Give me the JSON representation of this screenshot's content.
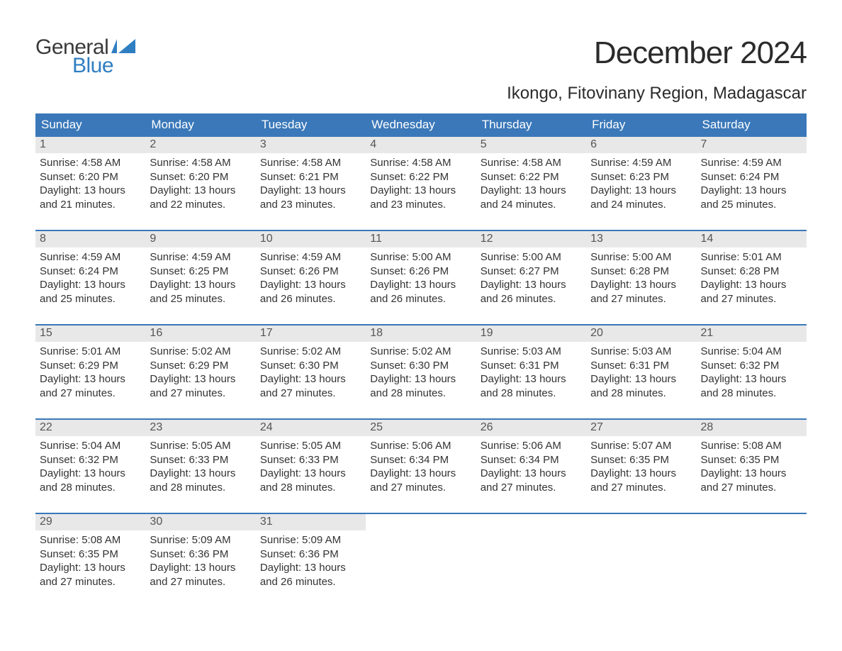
{
  "brand": {
    "general": "General",
    "blue": "Blue",
    "flag_color": "#2f7ec2"
  },
  "title": "December 2024",
  "location": "Ikongo, Fitovinany Region, Madagascar",
  "colors": {
    "header_bg": "#3a78b9",
    "header_text": "#ffffff",
    "daynum_bg": "#e8e8e8",
    "daynum_text": "#555555",
    "body_text": "#333333",
    "week_border": "#3a78b9",
    "page_bg": "#ffffff"
  },
  "typography": {
    "title_fontsize": 44,
    "location_fontsize": 24,
    "dow_fontsize": 17,
    "cell_fontsize": 15
  },
  "labels": {
    "sunrise": "Sunrise:",
    "sunset": "Sunset:",
    "daylight": "Daylight:"
  },
  "dow": [
    "Sunday",
    "Monday",
    "Tuesday",
    "Wednesday",
    "Thursday",
    "Friday",
    "Saturday"
  ],
  "weeks": [
    [
      {
        "n": "1",
        "sunrise": "4:58 AM",
        "sunset": "6:20 PM",
        "dl1": "13 hours",
        "dl2": "and 21 minutes."
      },
      {
        "n": "2",
        "sunrise": "4:58 AM",
        "sunset": "6:20 PM",
        "dl1": "13 hours",
        "dl2": "and 22 minutes."
      },
      {
        "n": "3",
        "sunrise": "4:58 AM",
        "sunset": "6:21 PM",
        "dl1": "13 hours",
        "dl2": "and 23 minutes."
      },
      {
        "n": "4",
        "sunrise": "4:58 AM",
        "sunset": "6:22 PM",
        "dl1": "13 hours",
        "dl2": "and 23 minutes."
      },
      {
        "n": "5",
        "sunrise": "4:58 AM",
        "sunset": "6:22 PM",
        "dl1": "13 hours",
        "dl2": "and 24 minutes."
      },
      {
        "n": "6",
        "sunrise": "4:59 AM",
        "sunset": "6:23 PM",
        "dl1": "13 hours",
        "dl2": "and 24 minutes."
      },
      {
        "n": "7",
        "sunrise": "4:59 AM",
        "sunset": "6:24 PM",
        "dl1": "13 hours",
        "dl2": "and 25 minutes."
      }
    ],
    [
      {
        "n": "8",
        "sunrise": "4:59 AM",
        "sunset": "6:24 PM",
        "dl1": "13 hours",
        "dl2": "and 25 minutes."
      },
      {
        "n": "9",
        "sunrise": "4:59 AM",
        "sunset": "6:25 PM",
        "dl1": "13 hours",
        "dl2": "and 25 minutes."
      },
      {
        "n": "10",
        "sunrise": "4:59 AM",
        "sunset": "6:26 PM",
        "dl1": "13 hours",
        "dl2": "and 26 minutes."
      },
      {
        "n": "11",
        "sunrise": "5:00 AM",
        "sunset": "6:26 PM",
        "dl1": "13 hours",
        "dl2": "and 26 minutes."
      },
      {
        "n": "12",
        "sunrise": "5:00 AM",
        "sunset": "6:27 PM",
        "dl1": "13 hours",
        "dl2": "and 26 minutes."
      },
      {
        "n": "13",
        "sunrise": "5:00 AM",
        "sunset": "6:28 PM",
        "dl1": "13 hours",
        "dl2": "and 27 minutes."
      },
      {
        "n": "14",
        "sunrise": "5:01 AM",
        "sunset": "6:28 PM",
        "dl1": "13 hours",
        "dl2": "and 27 minutes."
      }
    ],
    [
      {
        "n": "15",
        "sunrise": "5:01 AM",
        "sunset": "6:29 PM",
        "dl1": "13 hours",
        "dl2": "and 27 minutes."
      },
      {
        "n": "16",
        "sunrise": "5:02 AM",
        "sunset": "6:29 PM",
        "dl1": "13 hours",
        "dl2": "and 27 minutes."
      },
      {
        "n": "17",
        "sunrise": "5:02 AM",
        "sunset": "6:30 PM",
        "dl1": "13 hours",
        "dl2": "and 27 minutes."
      },
      {
        "n": "18",
        "sunrise": "5:02 AM",
        "sunset": "6:30 PM",
        "dl1": "13 hours",
        "dl2": "and 28 minutes."
      },
      {
        "n": "19",
        "sunrise": "5:03 AM",
        "sunset": "6:31 PM",
        "dl1": "13 hours",
        "dl2": "and 28 minutes."
      },
      {
        "n": "20",
        "sunrise": "5:03 AM",
        "sunset": "6:31 PM",
        "dl1": "13 hours",
        "dl2": "and 28 minutes."
      },
      {
        "n": "21",
        "sunrise": "5:04 AM",
        "sunset": "6:32 PM",
        "dl1": "13 hours",
        "dl2": "and 28 minutes."
      }
    ],
    [
      {
        "n": "22",
        "sunrise": "5:04 AM",
        "sunset": "6:32 PM",
        "dl1": "13 hours",
        "dl2": "and 28 minutes."
      },
      {
        "n": "23",
        "sunrise": "5:05 AM",
        "sunset": "6:33 PM",
        "dl1": "13 hours",
        "dl2": "and 28 minutes."
      },
      {
        "n": "24",
        "sunrise": "5:05 AM",
        "sunset": "6:33 PM",
        "dl1": "13 hours",
        "dl2": "and 28 minutes."
      },
      {
        "n": "25",
        "sunrise": "5:06 AM",
        "sunset": "6:34 PM",
        "dl1": "13 hours",
        "dl2": "and 27 minutes."
      },
      {
        "n": "26",
        "sunrise": "5:06 AM",
        "sunset": "6:34 PM",
        "dl1": "13 hours",
        "dl2": "and 27 minutes."
      },
      {
        "n": "27",
        "sunrise": "5:07 AM",
        "sunset": "6:35 PM",
        "dl1": "13 hours",
        "dl2": "and 27 minutes."
      },
      {
        "n": "28",
        "sunrise": "5:08 AM",
        "sunset": "6:35 PM",
        "dl1": "13 hours",
        "dl2": "and 27 minutes."
      }
    ],
    [
      {
        "n": "29",
        "sunrise": "5:08 AM",
        "sunset": "6:35 PM",
        "dl1": "13 hours",
        "dl2": "and 27 minutes."
      },
      {
        "n": "30",
        "sunrise": "5:09 AM",
        "sunset": "6:36 PM",
        "dl1": "13 hours",
        "dl2": "and 27 minutes."
      },
      {
        "n": "31",
        "sunrise": "5:09 AM",
        "sunset": "6:36 PM",
        "dl1": "13 hours",
        "dl2": "and 26 minutes."
      },
      null,
      null,
      null,
      null
    ]
  ]
}
